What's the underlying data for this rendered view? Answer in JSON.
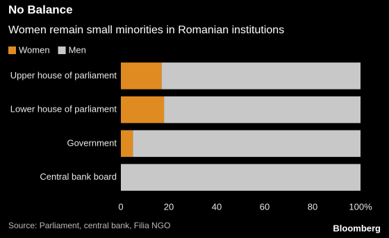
{
  "chart_data": {
    "type": "stacked-bar-horizontal",
    "title": "No Balance",
    "subtitle": "Women remain small minorities in Romanian institutions",
    "categories": [
      "Upper house of parliament",
      "Lower house of parliament",
      "Government",
      "Central bank board"
    ],
    "series": [
      {
        "name": "Women",
        "color": "#e08b22",
        "values": [
          17,
          18,
          5,
          0
        ]
      },
      {
        "name": "Men",
        "color": "#c8c8c8",
        "values": [
          83,
          82,
          95,
          100
        ]
      }
    ],
    "xlim": [
      0,
      100
    ],
    "xticks": [
      0,
      20,
      40,
      60,
      80,
      {
        "value": 100,
        "label": "100%"
      }
    ],
    "source": "Source: Parliament, central bank, Filia NGO",
    "logo": "Bloomberg"
  }
}
